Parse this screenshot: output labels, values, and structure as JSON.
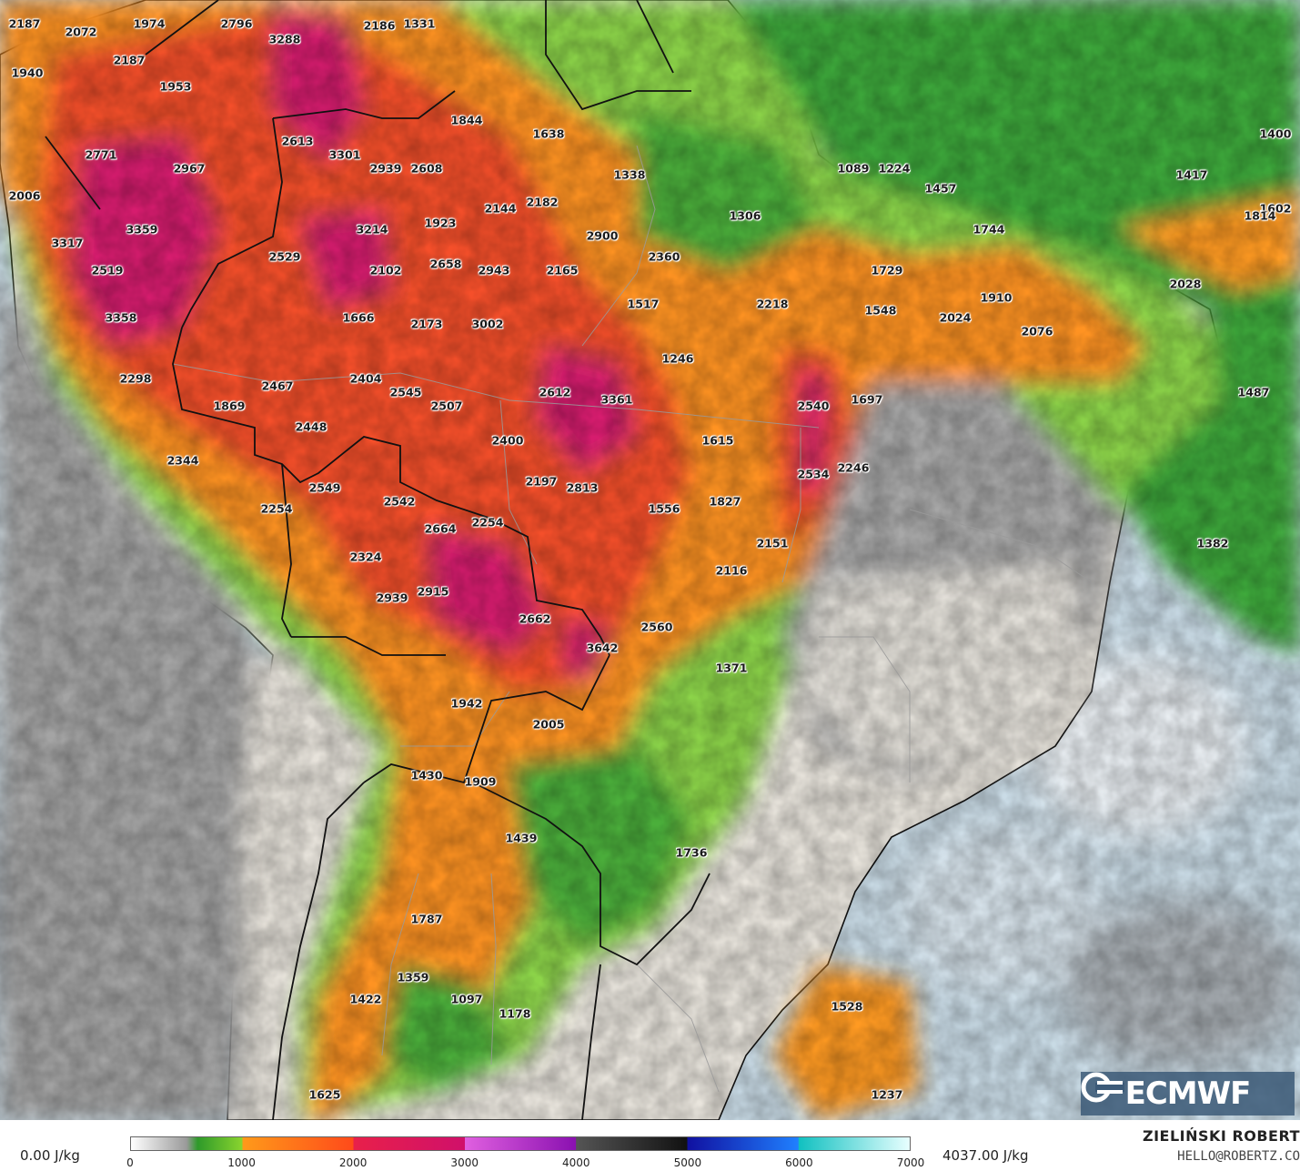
{
  "map": {
    "type": "weather-map",
    "region": "South America",
    "colors": {
      "ocean": "#c9dbe6",
      "land_low": "#e8e4dc",
      "green": "#4caf3a",
      "orange": "#ff8c1a",
      "red": "#f23b20",
      "magenta": "#d81f7a"
    },
    "values": [
      {
        "v": "2187"
      },
      {
        "v": "2072"
      },
      {
        "v": "1974"
      },
      {
        "v": "2796"
      },
      {
        "v": "2186"
      },
      {
        "v": "1331"
      },
      {
        "v": "3288"
      },
      {
        "v": "1940"
      },
      {
        "v": "2187"
      },
      {
        "v": "1953"
      },
      {
        "v": "1844"
      },
      {
        "v": "1638"
      },
      {
        "v": "2613"
      },
      {
        "v": "2771"
      },
      {
        "v": "3301"
      },
      {
        "v": "2939"
      },
      {
        "v": "2608"
      },
      {
        "v": "2967"
      },
      {
        "v": "1338"
      },
      {
        "v": "1089"
      },
      {
        "v": "1224"
      },
      {
        "v": "1400"
      },
      {
        "v": "1417"
      },
      {
        "v": "1457"
      },
      {
        "v": "2006"
      },
      {
        "v": "2144"
      },
      {
        "v": "2182"
      },
      {
        "v": "1306"
      },
      {
        "v": "1602"
      },
      {
        "v": "1814"
      },
      {
        "v": "3359"
      },
      {
        "v": "3214"
      },
      {
        "v": "1923"
      },
      {
        "v": "1744"
      },
      {
        "v": "3317"
      },
      {
        "v": "2529"
      },
      {
        "v": "2900"
      },
      {
        "v": "2658"
      },
      {
        "v": "2360"
      },
      {
        "v": "2519"
      },
      {
        "v": "2102"
      },
      {
        "v": "2943"
      },
      {
        "v": "2165"
      },
      {
        "v": "1729"
      },
      {
        "v": "2028"
      },
      {
        "v": "1910"
      },
      {
        "v": "1517"
      },
      {
        "v": "2218"
      },
      {
        "v": "1548"
      },
      {
        "v": "3358"
      },
      {
        "v": "1666"
      },
      {
        "v": "2173"
      },
      {
        "v": "3002"
      },
      {
        "v": "2024"
      },
      {
        "v": "2076"
      },
      {
        "v": "1246"
      },
      {
        "v": "2298"
      },
      {
        "v": "2404"
      },
      {
        "v": "2467"
      },
      {
        "v": "2545"
      },
      {
        "v": "2612"
      },
      {
        "v": "1487"
      },
      {
        "v": "1869"
      },
      {
        "v": "2507"
      },
      {
        "v": "3361"
      },
      {
        "v": "1697"
      },
      {
        "v": "2540"
      },
      {
        "v": "2448"
      },
      {
        "v": "2400"
      },
      {
        "v": "1615"
      },
      {
        "v": "2344"
      },
      {
        "v": "2246"
      },
      {
        "v": "2534"
      },
      {
        "v": "2549"
      },
      {
        "v": "2197"
      },
      {
        "v": "2813"
      },
      {
        "v": "2542"
      },
      {
        "v": "1827"
      },
      {
        "v": "2254"
      },
      {
        "v": "1556"
      },
      {
        "v": "2254"
      },
      {
        "v": "2664"
      },
      {
        "v": "2151"
      },
      {
        "v": "1382"
      },
      {
        "v": "2324"
      },
      {
        "v": "2116"
      },
      {
        "v": "2915"
      },
      {
        "v": "2939"
      },
      {
        "v": "2662"
      },
      {
        "v": "2560"
      },
      {
        "v": "3642"
      },
      {
        "v": "1371"
      },
      {
        "v": "1942"
      },
      {
        "v": "2005"
      },
      {
        "v": "1430"
      },
      {
        "v": "1909"
      },
      {
        "v": "1439"
      },
      {
        "v": "1736"
      },
      {
        "v": "1787"
      },
      {
        "v": "1359"
      },
      {
        "v": "1422"
      },
      {
        "v": "1097"
      },
      {
        "v": "1178"
      },
      {
        "v": "1528"
      },
      {
        "v": "1625"
      },
      {
        "v": "1237"
      }
    ]
  },
  "logo": {
    "text": "ECMWF",
    "icon": "ecmwf-logo-icon"
  },
  "legend": {
    "min_label": "0.00 J/kg",
    "max_label": "4037.00 J/kg",
    "ticks": [
      "0",
      "1000",
      "2000",
      "3000",
      "4000",
      "5000",
      "6000",
      "7000"
    ],
    "scale_max": 7000,
    "stops": [
      {
        "value": 0,
        "color": "#ffffff"
      },
      {
        "value": 500,
        "color": "#9a9a9a"
      },
      {
        "value": 600,
        "color": "#2e9a2a"
      },
      {
        "value": 1000,
        "color": "#8ad42e"
      },
      {
        "value": 1001,
        "color": "#ff9a1a"
      },
      {
        "value": 2000,
        "color": "#ff4a1a"
      },
      {
        "value": 2001,
        "color": "#e8204a"
      },
      {
        "value": 3000,
        "color": "#d0106a"
      },
      {
        "value": 3001,
        "color": "#e060e0"
      },
      {
        "value": 4000,
        "color": "#8a10b0"
      },
      {
        "value": 4001,
        "color": "#555555"
      },
      {
        "value": 5000,
        "color": "#111111"
      },
      {
        "value": 5001,
        "color": "#1010a0"
      },
      {
        "value": 6000,
        "color": "#2080ff"
      },
      {
        "value": 6001,
        "color": "#10c0c0"
      },
      {
        "value": 7000,
        "color": "#e8ffff"
      }
    ]
  },
  "author": {
    "name": "ZIELIŃSKI ROBERT",
    "contact": "HELLO@ROBERTZ.CO"
  }
}
